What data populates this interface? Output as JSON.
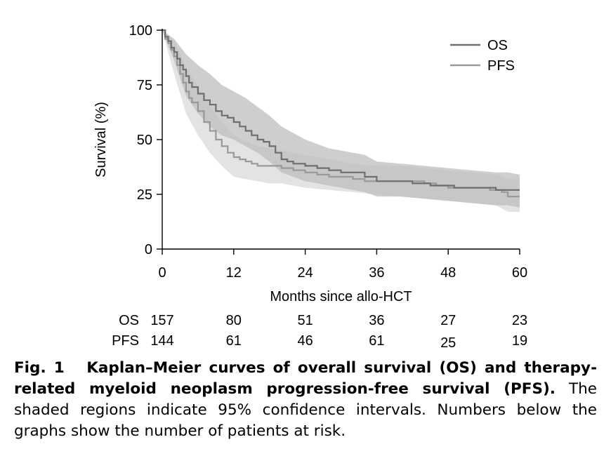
{
  "chart_data": {
    "type": "line",
    "xlabel": "Months since allo-HCT",
    "ylabel": "Survival (%)",
    "xlim": [
      0,
      60
    ],
    "ylim": [
      0,
      100
    ],
    "xticks": [
      0,
      12,
      24,
      36,
      48,
      60
    ],
    "yticks": [
      0,
      25,
      50,
      75,
      100
    ],
    "legend_position": "top-right",
    "grid": false,
    "series": [
      {
        "name": "OS",
        "color": "#6e6e6e",
        "band_color": "#bdbdbd",
        "points": [
          [
            0,
            100
          ],
          [
            0.5,
            97
          ],
          [
            1,
            95
          ],
          [
            1.5,
            92
          ],
          [
            2,
            90
          ],
          [
            2.5,
            87
          ],
          [
            3,
            84
          ],
          [
            3.5,
            82
          ],
          [
            4,
            79
          ],
          [
            4.5,
            76
          ],
          [
            5,
            74
          ],
          [
            6,
            71
          ],
          [
            7,
            68
          ],
          [
            8,
            66
          ],
          [
            9,
            63
          ],
          [
            10,
            61
          ],
          [
            11,
            60
          ],
          [
            12,
            58
          ],
          [
            13,
            56
          ],
          [
            14,
            54
          ],
          [
            15,
            52
          ],
          [
            16,
            50
          ],
          [
            17,
            49
          ],
          [
            18,
            47
          ],
          [
            19,
            44
          ],
          [
            20,
            41
          ],
          [
            21,
            40
          ],
          [
            22,
            39
          ],
          [
            24,
            38
          ],
          [
            26,
            37
          ],
          [
            28,
            36
          ],
          [
            30,
            35
          ],
          [
            34,
            33
          ],
          [
            36,
            31
          ],
          [
            40,
            31
          ],
          [
            42,
            30
          ],
          [
            45,
            29
          ],
          [
            47,
            29
          ],
          [
            49,
            28
          ],
          [
            53,
            28
          ],
          [
            56,
            27
          ],
          [
            58,
            27
          ],
          [
            60,
            27
          ]
        ],
        "ci_upper": [
          [
            0,
            100
          ],
          [
            2,
            96
          ],
          [
            4,
            89
          ],
          [
            6,
            84
          ],
          [
            8,
            80
          ],
          [
            10,
            75
          ],
          [
            12,
            72
          ],
          [
            14,
            69
          ],
          [
            16,
            65
          ],
          [
            18,
            61
          ],
          [
            20,
            56
          ],
          [
            22,
            53
          ],
          [
            24,
            50
          ],
          [
            26,
            48
          ],
          [
            28,
            46
          ],
          [
            30,
            45
          ],
          [
            32,
            44
          ],
          [
            34,
            43
          ],
          [
            36,
            40
          ],
          [
            40,
            39
          ],
          [
            44,
            38
          ],
          [
            48,
            37
          ],
          [
            52,
            36
          ],
          [
            56,
            35
          ],
          [
            58,
            35
          ],
          [
            60,
            34
          ]
        ],
        "ci_lower": [
          [
            0,
            100
          ],
          [
            2,
            86
          ],
          [
            4,
            70
          ],
          [
            6,
            62
          ],
          [
            8,
            56
          ],
          [
            10,
            52
          ],
          [
            12,
            50
          ],
          [
            14,
            47
          ],
          [
            16,
            44
          ],
          [
            18,
            40
          ],
          [
            20,
            35
          ],
          [
            22,
            33
          ],
          [
            24,
            31
          ],
          [
            26,
            30
          ],
          [
            28,
            29
          ],
          [
            30,
            28
          ],
          [
            32,
            27
          ],
          [
            34,
            26
          ],
          [
            36,
            24
          ],
          [
            40,
            24
          ],
          [
            44,
            23
          ],
          [
            48,
            22
          ],
          [
            52,
            21
          ],
          [
            56,
            20
          ],
          [
            58,
            20
          ],
          [
            60,
            19
          ]
        ]
      },
      {
        "name": "PFS",
        "color": "#999999",
        "band_color": "#e0e0e0",
        "points": [
          [
            0,
            100
          ],
          [
            0.5,
            96
          ],
          [
            1,
            94
          ],
          [
            1.5,
            91
          ],
          [
            2,
            88
          ],
          [
            2.5,
            84
          ],
          [
            3,
            80
          ],
          [
            3.5,
            76
          ],
          [
            4,
            72
          ],
          [
            4.5,
            69
          ],
          [
            5,
            67
          ],
          [
            6,
            63
          ],
          [
            7,
            58
          ],
          [
            8,
            54
          ],
          [
            9,
            50
          ],
          [
            10,
            47
          ],
          [
            11,
            44
          ],
          [
            12,
            42
          ],
          [
            13,
            41
          ],
          [
            14,
            40
          ],
          [
            15,
            39
          ],
          [
            16,
            38
          ],
          [
            18,
            38
          ],
          [
            20,
            37
          ],
          [
            22,
            36
          ],
          [
            24,
            35
          ],
          [
            26,
            34
          ],
          [
            28,
            33
          ],
          [
            30,
            33
          ],
          [
            32,
            32
          ],
          [
            34,
            31
          ],
          [
            36,
            31
          ],
          [
            40,
            31
          ],
          [
            44,
            30
          ],
          [
            46,
            29
          ],
          [
            48,
            28
          ],
          [
            52,
            28
          ],
          [
            55,
            27
          ],
          [
            57,
            26
          ],
          [
            58,
            24
          ],
          [
            60,
            24
          ]
        ],
        "ci_upper": [
          [
            0,
            100
          ],
          [
            2,
            95
          ],
          [
            4,
            83
          ],
          [
            6,
            74
          ],
          [
            8,
            65
          ],
          [
            10,
            58
          ],
          [
            12,
            52
          ],
          [
            14,
            49
          ],
          [
            16,
            47
          ],
          [
            18,
            46
          ],
          [
            20,
            45
          ],
          [
            24,
            43
          ],
          [
            28,
            41
          ],
          [
            32,
            39
          ],
          [
            36,
            38
          ],
          [
            40,
            38
          ],
          [
            44,
            37
          ],
          [
            48,
            36
          ],
          [
            52,
            35
          ],
          [
            56,
            34
          ],
          [
            58,
            32
          ],
          [
            60,
            32
          ]
        ],
        "ci_lower": [
          [
            0,
            100
          ],
          [
            2,
            80
          ],
          [
            4,
            62
          ],
          [
            6,
            52
          ],
          [
            8,
            44
          ],
          [
            10,
            38
          ],
          [
            12,
            33
          ],
          [
            14,
            32
          ],
          [
            16,
            31
          ],
          [
            18,
            30
          ],
          [
            20,
            30
          ],
          [
            24,
            28
          ],
          [
            28,
            27
          ],
          [
            32,
            26
          ],
          [
            36,
            25
          ],
          [
            40,
            24
          ],
          [
            44,
            23
          ],
          [
            48,
            22
          ],
          [
            52,
            21
          ],
          [
            56,
            20
          ],
          [
            58,
            17
          ],
          [
            60,
            17
          ]
        ]
      }
    ],
    "risk_table": {
      "times": [
        0,
        12,
        24,
        36,
        48,
        60
      ],
      "rows": [
        {
          "label": "OS",
          "counts": [
            "157",
            "80",
            "51",
            "36",
            "27",
            "23"
          ]
        },
        {
          "label": "PFS",
          "counts": [
            "144",
            "61",
            "46",
            "61",
            "25",
            "19"
          ]
        }
      ]
    }
  },
  "caption": {
    "fig_label": "Fig. 1",
    "bold_text": "Kaplan–Meier curves of overall survival (OS) and therapy-related myeloid neoplasm progression-free survival (PFS).",
    "body_text": "The shaded regions indicate 95% confidence intervals. Numbers below the graphs show the number of patients at risk."
  }
}
